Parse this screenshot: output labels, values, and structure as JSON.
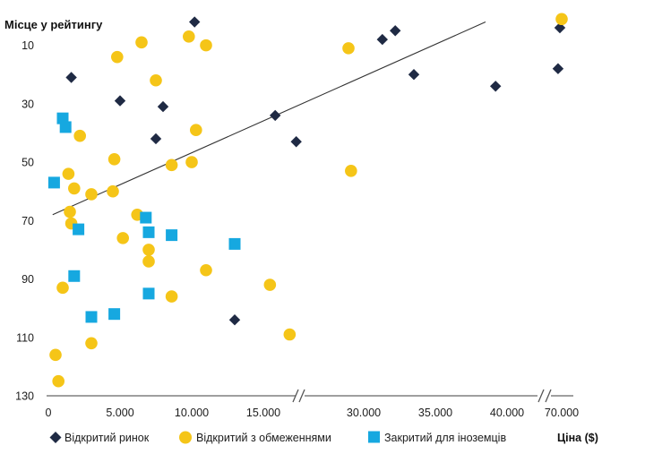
{
  "chart_data": {
    "type": "scatter",
    "ylabel": "Місце у рейтингу",
    "xlabel": "Ціна ($)",
    "y_inverted": true,
    "ylim": [
      130,
      0
    ],
    "y_ticks": [
      "10",
      "30",
      "50",
      "70",
      "90",
      "110",
      "130"
    ],
    "x_axis_broken": true,
    "x_tick_labels": [
      "0",
      "5.000",
      "10.000",
      "15.000",
      "30.000",
      "35.000",
      "40.000",
      "70.000"
    ],
    "legend_position": "bottom",
    "colors": {
      "open": "#1f2a44",
      "restricted": "#f5c518",
      "closed": "#16a8e0",
      "trend": "#333333"
    },
    "series": [
      {
        "name": "Відкритий ринок",
        "marker": "diamond",
        "points": [
          [
            10200,
            2
          ],
          [
            31300,
            8
          ],
          [
            32200,
            5
          ],
          [
            69000,
            4
          ],
          [
            1600,
            21
          ],
          [
            33500,
            20
          ],
          [
            68000,
            18
          ],
          [
            39200,
            24
          ],
          [
            5000,
            29
          ],
          [
            8000,
            31
          ],
          [
            15900,
            34
          ],
          [
            7500,
            42
          ],
          [
            17500,
            43
          ],
          [
            13000,
            104
          ]
        ]
      },
      {
        "name": "Відкритий з обмеженнями",
        "marker": "circle",
        "points": [
          [
            70000,
            1
          ],
          [
            9800,
            7
          ],
          [
            6500,
            9
          ],
          [
            11000,
            10
          ],
          [
            4800,
            14
          ],
          [
            27000,
            11
          ],
          [
            7500,
            22
          ],
          [
            2200,
            41
          ],
          [
            10300,
            39
          ],
          [
            4600,
            49
          ],
          [
            1400,
            54
          ],
          [
            8600,
            51
          ],
          [
            10000,
            50
          ],
          [
            27500,
            53
          ],
          [
            1800,
            59
          ],
          [
            3000,
            61
          ],
          [
            4500,
            60
          ],
          [
            1500,
            67
          ],
          [
            1600,
            71
          ],
          [
            6200,
            68
          ],
          [
            5200,
            76
          ],
          [
            7000,
            80
          ],
          [
            7000,
            84
          ],
          [
            11000,
            87
          ],
          [
            1000,
            93
          ],
          [
            15500,
            92
          ],
          [
            8600,
            96
          ],
          [
            3000,
            112
          ],
          [
            17000,
            109
          ],
          [
            500,
            116
          ],
          [
            700,
            125
          ]
        ]
      },
      {
        "name": "Закритий для іноземців",
        "marker": "square",
        "points": [
          [
            1000,
            35
          ],
          [
            1200,
            38
          ],
          [
            400,
            57
          ],
          [
            6800,
            69
          ],
          [
            7000,
            74
          ],
          [
            2100,
            73
          ],
          [
            8600,
            75
          ],
          [
            13000,
            78
          ],
          [
            1800,
            89
          ],
          [
            7000,
            95
          ],
          [
            3000,
            103
          ],
          [
            4600,
            102
          ]
        ]
      }
    ],
    "trendline": {
      "from": [
        300,
        68
      ],
      "to": [
        38500,
        2
      ]
    }
  }
}
